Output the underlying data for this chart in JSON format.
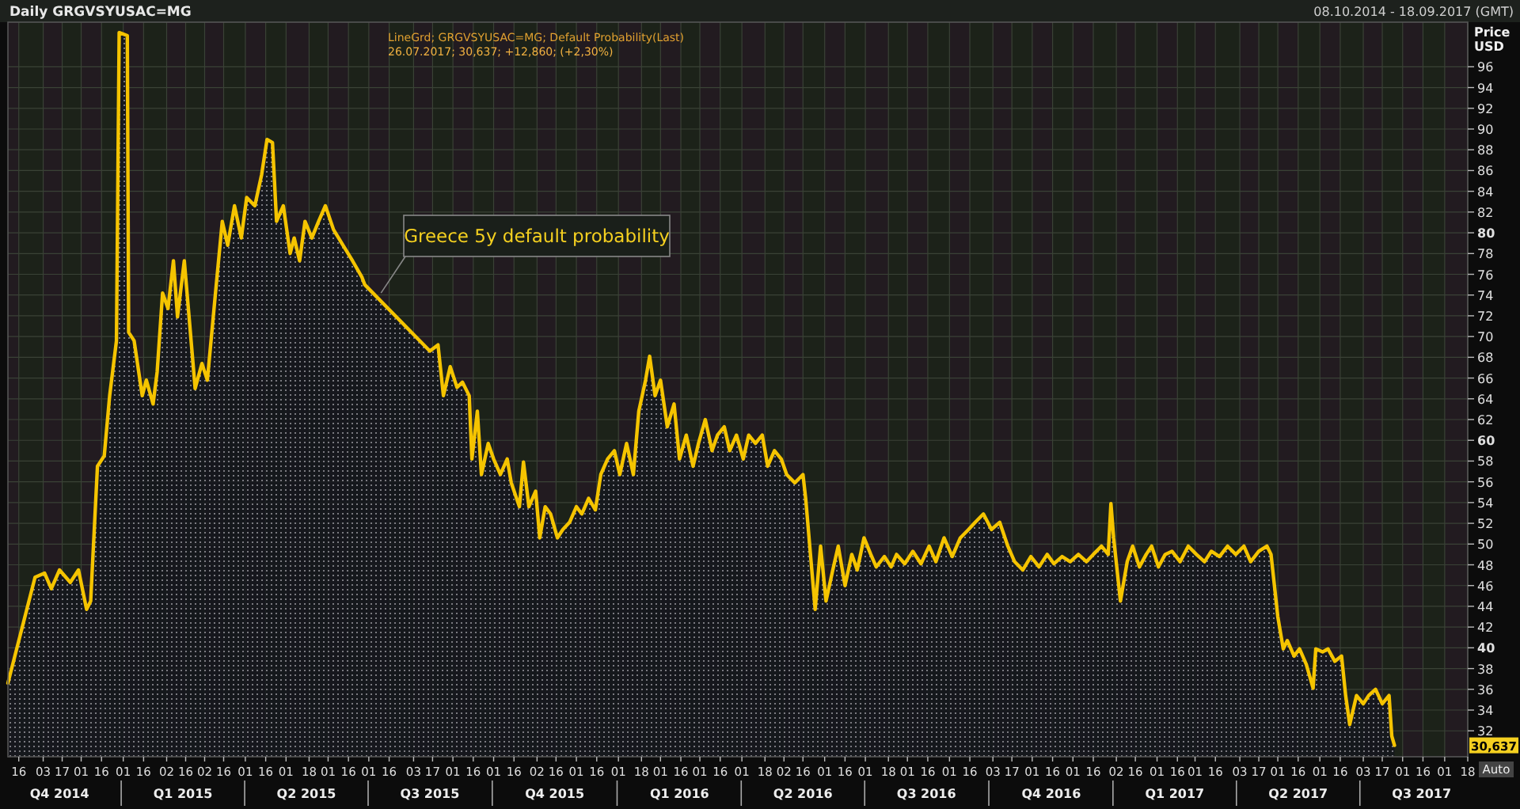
{
  "chart_data": {
    "type": "area",
    "title": "Daily GRGVSYUSAC=MG",
    "subtitle": "08.10.2014 - 18.09.2017 (GMT)",
    "ylabel": "Price USD",
    "annotations": [
      "LineGrd; GRGVSYUSAC=MG; Default Probability(Last)",
      "26.07.2017; 30,637; +12,860; (+2,30%)",
      {
        "text": "Greece 5y default probability",
        "x": "2015-07-10",
        "y": 74.2
      },
      "30,637",
      "Auto"
    ],
    "xlim": [
      "2014-10-08",
      "2017-09-18"
    ],
    "ylim": [
      29.5,
      100.3
    ],
    "yticks": [
      32,
      34,
      36,
      38,
      40,
      42,
      44,
      46,
      48,
      50,
      52,
      54,
      56,
      58,
      60,
      62,
      64,
      66,
      68,
      70,
      72,
      74,
      76,
      78,
      80,
      82,
      84,
      86,
      88,
      90,
      92,
      94,
      96
    ],
    "xticks": [
      {
        "value": "2014-10-16",
        "label": "16"
      },
      {
        "value": "2014-11-03",
        "label": "03"
      },
      {
        "value": "2014-11-17",
        "label": "17"
      },
      {
        "value": "2014-12-01",
        "label": "01"
      },
      {
        "value": "2014-12-16",
        "label": "16"
      },
      {
        "value": "2015-01-01",
        "label": "01"
      },
      {
        "value": "2015-01-16",
        "label": "16"
      },
      {
        "value": "2015-02-02",
        "label": "02"
      },
      {
        "value": "2015-02-16",
        "label": "16"
      },
      {
        "value": "2015-03-02",
        "label": "02"
      },
      {
        "value": "2015-03-16",
        "label": "16"
      },
      {
        "value": "2015-04-01",
        "label": "01"
      },
      {
        "value": "2015-04-16",
        "label": "16"
      },
      {
        "value": "2015-05-01",
        "label": "01"
      },
      {
        "value": "2015-05-18",
        "label": "18"
      },
      {
        "value": "2015-06-01",
        "label": "01"
      },
      {
        "value": "2015-06-16",
        "label": "16"
      },
      {
        "value": "2015-07-01",
        "label": "01"
      },
      {
        "value": "2015-07-16",
        "label": "16"
      },
      {
        "value": "2015-08-03",
        "label": "03"
      },
      {
        "value": "2015-08-17",
        "label": "17"
      },
      {
        "value": "2015-09-01",
        "label": "01"
      },
      {
        "value": "2015-09-16",
        "label": "16"
      },
      {
        "value": "2015-10-01",
        "label": "01"
      },
      {
        "value": "2015-10-16",
        "label": "16"
      },
      {
        "value": "2015-11-02",
        "label": "02"
      },
      {
        "value": "2015-11-16",
        "label": "16"
      },
      {
        "value": "2015-12-01",
        "label": "01"
      },
      {
        "value": "2015-12-16",
        "label": "16"
      },
      {
        "value": "2016-01-01",
        "label": "01"
      },
      {
        "value": "2016-01-18",
        "label": "18"
      },
      {
        "value": "2016-02-01",
        "label": "01"
      },
      {
        "value": "2016-02-16",
        "label": "16"
      },
      {
        "value": "2016-03-01",
        "label": "01"
      },
      {
        "value": "2016-03-16",
        "label": "16"
      },
      {
        "value": "2016-04-01",
        "label": "01"
      },
      {
        "value": "2016-04-18",
        "label": "18"
      },
      {
        "value": "2016-05-02",
        "label": "02"
      },
      {
        "value": "2016-05-16",
        "label": "16"
      },
      {
        "value": "2016-06-01",
        "label": "01"
      },
      {
        "value": "2016-06-16",
        "label": "16"
      },
      {
        "value": "2016-07-01",
        "label": "01"
      },
      {
        "value": "2016-07-18",
        "label": "18"
      },
      {
        "value": "2016-08-01",
        "label": "01"
      },
      {
        "value": "2016-08-16",
        "label": "16"
      },
      {
        "value": "2016-09-01",
        "label": "01"
      },
      {
        "value": "2016-09-16",
        "label": "16"
      },
      {
        "value": "2016-10-03",
        "label": "03"
      },
      {
        "value": "2016-10-17",
        "label": "17"
      },
      {
        "value": "2016-11-01",
        "label": "01"
      },
      {
        "value": "2016-11-16",
        "label": "16"
      },
      {
        "value": "2016-12-01",
        "label": "01"
      },
      {
        "value": "2016-12-16",
        "label": "16"
      },
      {
        "value": "2017-01-02",
        "label": "02"
      },
      {
        "value": "2017-01-16",
        "label": "16"
      },
      {
        "value": "2017-02-01",
        "label": "01"
      },
      {
        "value": "2017-02-16",
        "label": "16"
      },
      {
        "value": "2017-03-01",
        "label": "01"
      },
      {
        "value": "2017-03-16",
        "label": "16"
      },
      {
        "value": "2017-04-03",
        "label": "03"
      },
      {
        "value": "2017-04-17",
        "label": "17"
      },
      {
        "value": "2017-05-01",
        "label": "01"
      },
      {
        "value": "2017-05-16",
        "label": "16"
      },
      {
        "value": "2017-06-01",
        "label": "01"
      },
      {
        "value": "2017-06-16",
        "label": "16"
      },
      {
        "value": "2017-07-03",
        "label": "03"
      },
      {
        "value": "2017-07-17",
        "label": "17"
      },
      {
        "value": "2017-08-01",
        "label": "01"
      },
      {
        "value": "2017-08-16",
        "label": "16"
      },
      {
        "value": "2017-09-01",
        "label": "01"
      },
      {
        "value": "2017-09-18",
        "label": "18"
      }
    ],
    "x2lim": [
      "2014-10-08",
      "2017-09-18"
    ],
    "x2ticks": [
      {
        "value": "2014-11-15",
        "label": "Q4 2014"
      },
      {
        "value": "2015-02-14",
        "label": "Q1 2015"
      },
      {
        "value": "2015-05-16",
        "label": "Q2 2015"
      },
      {
        "value": "2015-08-15",
        "label": "Q3 2015"
      },
      {
        "value": "2015-11-15",
        "label": "Q4 2015"
      },
      {
        "value": "2016-02-15",
        "label": "Q1 2016"
      },
      {
        "value": "2016-05-16",
        "label": "Q2 2016"
      },
      {
        "value": "2016-08-15",
        "label": "Q3 2016"
      },
      {
        "value": "2016-11-15",
        "label": "Q4 2016"
      },
      {
        "value": "2017-02-14",
        "label": "Q1 2017"
      },
      {
        "value": "2017-05-16",
        "label": "Q2 2017"
      },
      {
        "value": "2017-08-15",
        "label": "Q3 2017"
      }
    ],
    "grid": true,
    "series": [
      {
        "color": "#f5c400",
        "x": [
          "2014-10-08",
          "2014-10-28",
          "2014-11-04",
          "2014-11-09",
          "2014-11-15",
          "2014-11-23",
          "2014-11-29",
          "2014-12-05",
          "2014-12-08",
          "2014-12-13",
          "2014-12-18",
          "2014-12-22",
          "2014-12-27",
          "2014-12-29",
          "2015-01-04",
          "2015-01-05",
          "2015-01-09",
          "2015-01-15",
          "2015-01-18",
          "2015-01-23",
          "2015-01-26",
          "2015-01-30",
          "2015-02-03",
          "2015-02-07",
          "2015-02-10",
          "2015-02-15",
          "2015-02-18",
          "2015-02-23",
          "2015-02-28",
          "2015-03-04",
          "2015-03-10",
          "2015-03-15",
          "2015-03-19",
          "2015-03-24",
          "2015-03-29",
          "2015-04-02",
          "2015-04-08",
          "2015-04-13",
          "2015-04-17",
          "2015-04-21",
          "2015-04-24",
          "2015-04-29",
          "2015-05-04",
          "2015-05-07",
          "2015-05-11",
          "2015-05-15",
          "2015-05-20",
          "2015-05-25",
          "2015-05-30",
          "2015-06-05",
          "2015-06-12",
          "2015-06-19",
          "2015-06-26",
          "2015-06-28",
          "2015-08-15",
          "2015-08-21",
          "2015-08-25",
          "2015-08-30",
          "2015-09-04",
          "2015-09-08",
          "2015-09-13",
          "2015-09-15",
          "2015-09-19",
          "2015-09-22",
          "2015-09-27",
          "2015-10-01",
          "2015-10-06",
          "2015-10-11",
          "2015-10-14",
          "2015-10-20",
          "2015-10-23",
          "2015-10-27",
          "2015-11-01",
          "2015-11-04",
          "2015-11-08",
          "2015-11-12",
          "2015-11-17",
          "2015-11-21",
          "2015-11-26",
          "2015-12-01",
          "2015-12-05",
          "2015-12-10",
          "2015-12-15",
          "2015-12-19",
          "2015-12-24",
          "2015-12-29",
          "2016-01-02",
          "2016-01-07",
          "2016-01-12",
          "2016-01-16",
          "2016-01-21",
          "2016-01-24",
          "2016-01-28",
          "2016-02-01",
          "2016-02-06",
          "2016-02-11",
          "2016-02-15",
          "2016-02-20",
          "2016-02-25",
          "2016-02-29",
          "2016-03-05",
          "2016-03-10",
          "2016-03-14",
          "2016-03-19",
          "2016-03-23",
          "2016-03-28",
          "2016-04-02",
          "2016-04-06",
          "2016-04-11",
          "2016-04-16",
          "2016-04-20",
          "2016-04-25",
          "2016-04-30",
          "2016-05-04",
          "2016-05-10",
          "2016-05-16",
          "2016-05-18",
          "2016-05-22",
          "2016-05-25",
          "2016-05-29",
          "2016-06-02",
          "2016-06-07",
          "2016-06-11",
          "2016-06-16",
          "2016-06-21",
          "2016-06-25",
          "2016-06-30",
          "2016-07-05",
          "2016-07-09",
          "2016-07-15",
          "2016-07-20",
          "2016-07-24",
          "2016-07-30",
          "2016-08-05",
          "2016-08-11",
          "2016-08-17",
          "2016-08-22",
          "2016-08-28",
          "2016-09-03",
          "2016-09-09",
          "2016-09-15",
          "2016-09-20",
          "2016-09-26",
          "2016-10-02",
          "2016-10-08",
          "2016-10-14",
          "2016-10-19",
          "2016-10-25",
          "2016-10-31",
          "2016-11-06",
          "2016-11-12",
          "2016-11-17",
          "2016-11-23",
          "2016-11-29",
          "2016-12-05",
          "2016-12-11",
          "2016-12-16",
          "2016-12-22",
          "2016-12-27",
          "2016-12-29",
          "2016-12-31",
          "2017-01-05",
          "2017-01-10",
          "2017-01-14",
          "2017-01-19",
          "2017-01-24",
          "2017-01-28",
          "2017-02-02",
          "2017-02-07",
          "2017-02-12",
          "2017-02-18",
          "2017-02-24",
          "2017-03-02",
          "2017-03-08",
          "2017-03-13",
          "2017-03-19",
          "2017-03-25",
          "2017-03-31",
          "2017-04-06",
          "2017-04-11",
          "2017-04-17",
          "2017-04-23",
          "2017-04-26",
          "2017-05-01",
          "2017-05-05",
          "2017-05-08",
          "2017-05-13",
          "2017-05-17",
          "2017-05-22",
          "2017-05-27",
          "2017-05-29",
          "2017-06-03",
          "2017-06-07",
          "2017-06-12",
          "2017-06-17",
          "2017-06-20",
          "2017-06-23",
          "2017-06-28",
          "2017-07-03",
          "2017-07-07",
          "2017-07-12",
          "2017-07-17",
          "2017-07-22",
          "2017-07-24",
          "2017-07-26"
        ],
        "values": [
          36.6,
          46.8,
          47.2,
          45.7,
          47.5,
          46.3,
          47.5,
          43.7,
          44.5,
          57.5,
          58.5,
          64.3,
          69.6,
          99.3,
          99.0,
          70.4,
          69.6,
          64.3,
          65.8,
          63.5,
          66.6,
          74.2,
          72.7,
          77.3,
          71.9,
          77.3,
          72.7,
          65.0,
          67.4,
          65.8,
          74.2,
          81.1,
          78.8,
          82.6,
          79.5,
          83.4,
          82.6,
          85.6,
          89.0,
          88.7,
          81.1,
          82.6,
          78.0,
          79.5,
          77.3,
          81.1,
          79.5,
          81.1,
          82.6,
          80.3,
          78.8,
          77.3,
          75.7,
          75.0,
          68.6,
          69.2,
          64.3,
          67.1,
          65.1,
          65.6,
          64.3,
          58.2,
          62.8,
          56.7,
          59.7,
          58.2,
          56.7,
          58.2,
          55.9,
          53.6,
          57.9,
          53.6,
          55.1,
          50.6,
          53.6,
          52.9,
          50.6,
          51.4,
          52.1,
          53.6,
          52.9,
          54.4,
          53.3,
          56.7,
          58.2,
          59.0,
          56.7,
          59.7,
          56.7,
          62.8,
          65.8,
          68.1,
          64.3,
          65.8,
          61.3,
          63.5,
          58.2,
          60.5,
          57.5,
          59.7,
          62.0,
          59.0,
          60.5,
          61.3,
          59.0,
          60.5,
          58.2,
          60.5,
          59.7,
          60.5,
          57.5,
          59.0,
          58.2,
          56.7,
          55.9,
          56.7,
          54.4,
          48.3,
          43.7,
          49.8,
          44.5,
          47.5,
          49.8,
          46.0,
          49.0,
          47.5,
          50.6,
          49.0,
          47.8,
          48.8,
          47.8,
          49.0,
          48.1,
          49.3,
          48.1,
          49.8,
          48.3,
          50.6,
          48.8,
          50.6,
          51.4,
          52.1,
          52.9,
          51.4,
          52.1,
          49.8,
          48.3,
          47.5,
          48.8,
          47.8,
          49.0,
          48.1,
          48.8,
          48.3,
          49.0,
          48.3,
          49.0,
          49.8,
          49.0,
          53.9,
          50.6,
          44.5,
          48.3,
          49.8,
          47.8,
          49.0,
          49.8,
          47.8,
          49.0,
          49.3,
          48.3,
          49.8,
          49.0,
          48.3,
          49.3,
          48.8,
          49.8,
          49.0,
          49.8,
          48.3,
          49.3,
          49.8,
          49.0,
          43.0,
          39.9,
          40.7,
          39.2,
          39.9,
          38.4,
          36.1,
          39.9,
          39.6,
          39.9,
          38.7,
          39.2,
          35.4,
          32.6,
          35.4,
          34.6,
          35.4,
          36.0,
          34.6,
          35.4,
          31.5,
          30.6
        ]
      }
    ]
  }
}
